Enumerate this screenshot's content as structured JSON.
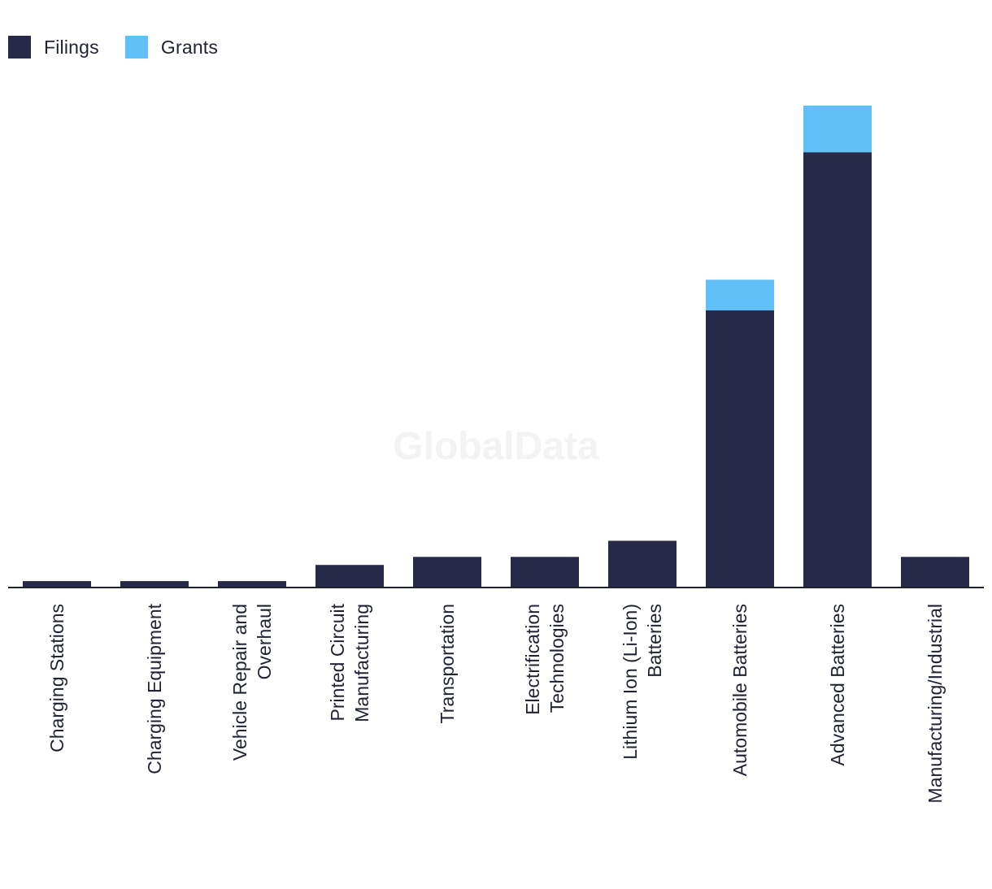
{
  "watermark": "GlobalData",
  "colors": {
    "filings": "#272949",
    "grants": "#62c0f8",
    "axis": "#1f2233",
    "watermark": "#f3f3f5"
  },
  "chart_data": {
    "type": "bar",
    "stacked": true,
    "legend_position": "top-left",
    "grid": false,
    "categories": [
      "Charging Stations",
      "Charging Equipment",
      "Vehicle Repair and Overhaul",
      "Printed Circuit Manufacturing",
      "Transportation",
      "Electrification Technologies",
      "Lithium Ion (Li-Ion) Batteries",
      "Automobile Batteries",
      "Advanced Batteries",
      "Manufacturing/Industrial"
    ],
    "category_label_lines": [
      [
        "Charging Stations"
      ],
      [
        "Charging Equipment"
      ],
      [
        "Vehicle Repair and",
        "Overhaul"
      ],
      [
        "Printed Circuit",
        "Manufacturing"
      ],
      [
        "Transportation"
      ],
      [
        "Electrification",
        "Technologies"
      ],
      [
        "Lithium Ion (Li-Ion)",
        "Batteries"
      ],
      [
        "Automobile Batteries"
      ],
      [
        "Advanced Batteries"
      ],
      [
        "Manufacturing/Industrial"
      ]
    ],
    "series": [
      {
        "name": "Filings",
        "color": "#272949",
        "values": [
          4,
          4,
          4,
          14,
          19,
          19,
          29,
          172,
          270,
          19
        ]
      },
      {
        "name": "Grants",
        "color": "#62c0f8",
        "values": [
          0,
          0,
          0,
          0,
          0,
          0,
          0,
          19,
          29,
          0
        ]
      }
    ],
    "ylim": [
      0,
      302
    ]
  }
}
